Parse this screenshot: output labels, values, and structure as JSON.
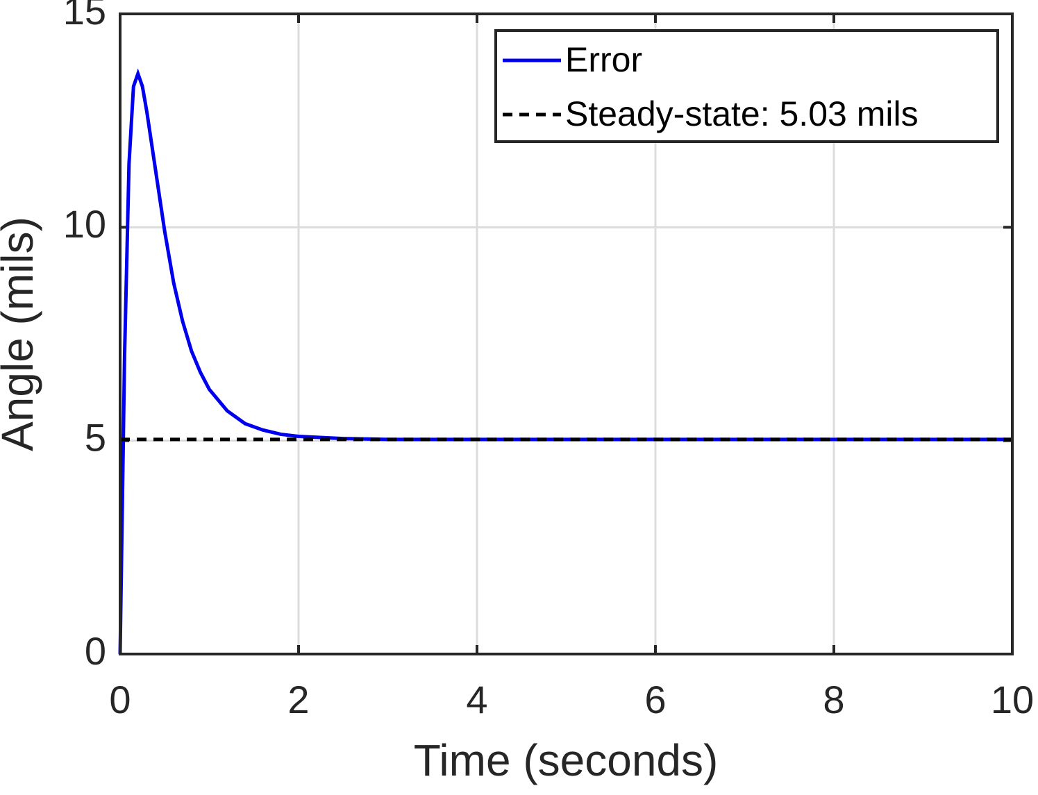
{
  "chart_data": {
    "type": "line",
    "xlabel": "Time (seconds)",
    "ylabel": "Angle (mils)",
    "xlim": [
      0,
      10
    ],
    "ylim": [
      0,
      15
    ],
    "xticks": [
      0,
      2,
      4,
      6,
      8,
      10
    ],
    "yticks": [
      0,
      5,
      10,
      15
    ],
    "grid": true,
    "legend": "upper right",
    "series": [
      {
        "name": "Error",
        "color": "#0000ee",
        "style": "solid",
        "x": [
          0,
          0.05,
          0.1,
          0.15,
          0.2,
          0.25,
          0.3,
          0.4,
          0.5,
          0.6,
          0.7,
          0.8,
          0.9,
          1.0,
          1.2,
          1.4,
          1.6,
          1.8,
          2.0,
          2.5,
          3,
          4,
          6,
          8,
          10
        ],
        "values": [
          0,
          7,
          11.5,
          13.3,
          13.6,
          13.3,
          12.7,
          11.3,
          9.9,
          8.7,
          7.8,
          7.1,
          6.6,
          6.2,
          5.7,
          5.4,
          5.25,
          5.15,
          5.1,
          5.05,
          5.03,
          5.03,
          5.03,
          5.03,
          5.03
        ]
      },
      {
        "name": "Steady-state: 5.03 mils",
        "color": "#000000",
        "style": "dashed",
        "x": [
          0,
          10
        ],
        "values": [
          5.03,
          5.03
        ]
      }
    ]
  }
}
